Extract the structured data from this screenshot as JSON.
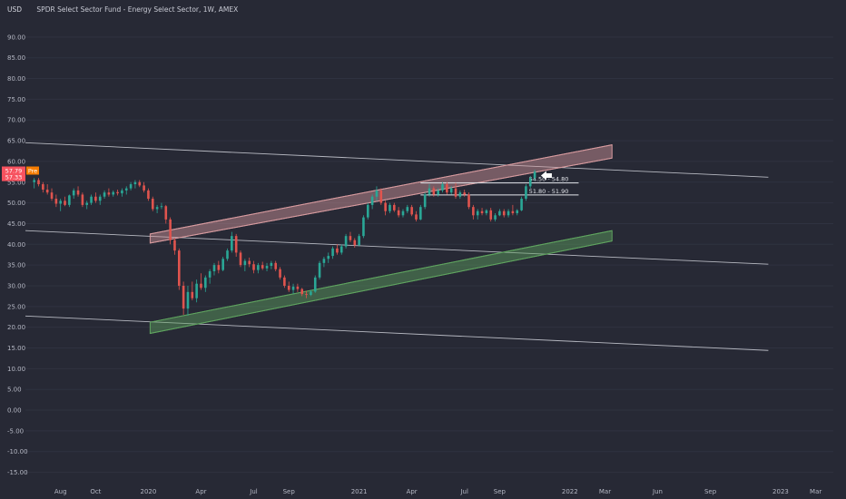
{
  "header": {
    "symbol": "USD",
    "title": "SPDR Select Sector Fund - Energy Select Sector, 1W, AMEX"
  },
  "chart_data": {
    "type": "candlestick",
    "title": "SPDR Select Sector Fund - Energy Select Sector, 1W, AMEX",
    "ylabel": "USD",
    "ylim": [
      -17.5,
      95
    ],
    "y_ticks": [
      "90.00",
      "85.00",
      "80.00",
      "75.00",
      "70.00",
      "65.00",
      "60.00",
      "55.00",
      "50.00",
      "45.00",
      "40.00",
      "35.00",
      "30.00",
      "25.00",
      "20.00",
      "15.00",
      "10.00",
      "5.00",
      "0.00",
      "-5.00",
      "-10.00",
      "-15.00"
    ],
    "x_ticks": [
      {
        "label": "Aug",
        "t": 0.5
      },
      {
        "label": "Oct",
        "t": 2.5
      },
      {
        "label": "2020",
        "t": 5.5
      },
      {
        "label": "Apr",
        "t": 8.5
      },
      {
        "label": "Jul",
        "t": 11.5
      },
      {
        "label": "Sep",
        "t": 13.5
      },
      {
        "label": "2021",
        "t": 17.5
      },
      {
        "label": "Apr",
        "t": 20.5
      },
      {
        "label": "Jul",
        "t": 23.5
      },
      {
        "label": "Sep",
        "t": 25.5
      },
      {
        "label": "2022",
        "t": 29.5
      },
      {
        "label": "Mar",
        "t": 31.5
      },
      {
        "label": "Jun",
        "t": 34.5
      },
      {
        "label": "Sep",
        "t": 37.5
      },
      {
        "label": "2023",
        "t": 41.5
      },
      {
        "label": "Mar",
        "t": 43.5
      }
    ],
    "x_range_months_since_jul_2019": [
      -1.5,
      44.5
    ],
    "last_price": "57.79",
    "prev_close": "57.33",
    "session_label": "Pre",
    "price_levels": [
      {
        "label": "54.50 - 54.80",
        "value": 54.8
      },
      {
        "label": "51.80 - 51.90",
        "value": 51.9
      }
    ],
    "channels": [
      {
        "name": "resistance-channel",
        "color": "#d69a9e",
        "t1": 5.6,
        "t2": 31.9,
        "lower": [
          40.3,
          60.8
        ],
        "upper": [
          42.5,
          64.0
        ]
      },
      {
        "name": "support-channel",
        "color": "#5fa35f",
        "t1": 5.6,
        "t2": 31.9,
        "lower": [
          18.5,
          40.8
        ],
        "upper": [
          21.2,
          43.3
        ]
      }
    ],
    "trend_lines": [
      {
        "t1": -1.5,
        "v1": 64.5,
        "t2": 40.8,
        "v2": 56.2
      },
      {
        "t1": -1.5,
        "v1": 43.3,
        "t2": 40.8,
        "v2": 35.2
      },
      {
        "t1": -1.5,
        "v1": 22.7,
        "t2": 40.8,
        "v2": 14.4
      }
    ],
    "candles": [
      {
        "t": -1.0,
        "o": 55,
        "h": 56,
        "l": 53.5,
        "c": 55.5
      },
      {
        "t": -0.75,
        "o": 55.5,
        "h": 56,
        "l": 54,
        "c": 54.5
      },
      {
        "t": -0.5,
        "o": 54.5,
        "h": 55,
        "l": 52.5,
        "c": 53.2
      },
      {
        "t": -0.25,
        "o": 53.2,
        "h": 54.5,
        "l": 52,
        "c": 52.5
      },
      {
        "t": 0.0,
        "o": 52.5,
        "h": 53.5,
        "l": 50.5,
        "c": 51
      },
      {
        "t": 0.25,
        "o": 51,
        "h": 52,
        "l": 49,
        "c": 49.8
      },
      {
        "t": 0.5,
        "o": 49.8,
        "h": 51,
        "l": 48,
        "c": 50.5
      },
      {
        "t": 0.75,
        "o": 50.5,
        "h": 51.5,
        "l": 49.2,
        "c": 49.5
      },
      {
        "t": 1.0,
        "o": 49.5,
        "h": 52,
        "l": 49,
        "c": 51.8
      },
      {
        "t": 1.25,
        "o": 51.8,
        "h": 53.5,
        "l": 51,
        "c": 53
      },
      {
        "t": 1.5,
        "o": 53,
        "h": 54,
        "l": 51.5,
        "c": 52
      },
      {
        "t": 1.75,
        "o": 52,
        "h": 52.5,
        "l": 49,
        "c": 49.5
      },
      {
        "t": 2.0,
        "o": 49.5,
        "h": 50.5,
        "l": 48.5,
        "c": 50
      },
      {
        "t": 2.25,
        "o": 50,
        "h": 52,
        "l": 49.5,
        "c": 51.5
      },
      {
        "t": 2.5,
        "o": 51.5,
        "h": 52.5,
        "l": 50,
        "c": 50.5
      },
      {
        "t": 2.75,
        "o": 50.5,
        "h": 52,
        "l": 49.5,
        "c": 51.5
      },
      {
        "t": 3.0,
        "o": 51.5,
        "h": 53,
        "l": 51,
        "c": 52.5
      },
      {
        "t": 3.25,
        "o": 52.5,
        "h": 53.5,
        "l": 51.5,
        "c": 52
      },
      {
        "t": 3.5,
        "o": 52,
        "h": 53,
        "l": 51.5,
        "c": 52.6
      },
      {
        "t": 3.75,
        "o": 52.6,
        "h": 53.2,
        "l": 51.8,
        "c": 52.3
      },
      {
        "t": 4.0,
        "o": 52.3,
        "h": 53.5,
        "l": 51.5,
        "c": 53
      },
      {
        "t": 4.25,
        "o": 53,
        "h": 54,
        "l": 52,
        "c": 53.5
      },
      {
        "t": 4.5,
        "o": 53.5,
        "h": 55,
        "l": 53,
        "c": 54.5
      },
      {
        "t": 4.75,
        "o": 54.5,
        "h": 55.5,
        "l": 53.5,
        "c": 55
      },
      {
        "t": 5.0,
        "o": 55,
        "h": 55.5,
        "l": 53.8,
        "c": 54.2
      },
      {
        "t": 5.25,
        "o": 54.2,
        "h": 55,
        "l": 52.5,
        "c": 53
      },
      {
        "t": 5.5,
        "o": 53,
        "h": 53.5,
        "l": 50.5,
        "c": 51
      },
      {
        "t": 5.75,
        "o": 51,
        "h": 51.5,
        "l": 48,
        "c": 48.5
      },
      {
        "t": 6.0,
        "o": 48.5,
        "h": 49.5,
        "l": 47.5,
        "c": 49
      },
      {
        "t": 6.25,
        "o": 49,
        "h": 50,
        "l": 48.5,
        "c": 49.2
      },
      {
        "t": 6.5,
        "o": 49.2,
        "h": 49.5,
        "l": 45,
        "c": 46
      },
      {
        "t": 6.75,
        "o": 46,
        "h": 46.5,
        "l": 40,
        "c": 41
      },
      {
        "t": 7.0,
        "o": 41,
        "h": 41.5,
        "l": 37.5,
        "c": 38.5
      },
      {
        "t": 7.25,
        "o": 38.5,
        "h": 39,
        "l": 29,
        "c": 30
      },
      {
        "t": 7.5,
        "o": 30,
        "h": 31,
        "l": 23,
        "c": 24.5
      },
      {
        "t": 7.75,
        "o": 24.5,
        "h": 30,
        "l": 22.8,
        "c": 28.5
      },
      {
        "t": 8.0,
        "o": 28.5,
        "h": 31,
        "l": 26.5,
        "c": 27
      },
      {
        "t": 8.25,
        "o": 27,
        "h": 31.5,
        "l": 26,
        "c": 30.5
      },
      {
        "t": 8.5,
        "o": 30.5,
        "h": 33,
        "l": 29,
        "c": 29.5
      },
      {
        "t": 8.75,
        "o": 29.5,
        "h": 32.5,
        "l": 28.5,
        "c": 32
      },
      {
        "t": 9.0,
        "o": 32,
        "h": 34,
        "l": 30.5,
        "c": 33.5
      },
      {
        "t": 9.25,
        "o": 33.5,
        "h": 35.5,
        "l": 32.5,
        "c": 35
      },
      {
        "t": 9.5,
        "o": 35,
        "h": 36,
        "l": 33,
        "c": 33.8
      },
      {
        "t": 9.75,
        "o": 33.8,
        "h": 37,
        "l": 33.5,
        "c": 36.5
      },
      {
        "t": 10.0,
        "o": 36.5,
        "h": 39,
        "l": 36,
        "c": 38.5
      },
      {
        "t": 10.25,
        "o": 38.5,
        "h": 43,
        "l": 38,
        "c": 42
      },
      {
        "t": 10.5,
        "o": 42,
        "h": 42.5,
        "l": 37,
        "c": 38
      },
      {
        "t": 10.75,
        "o": 38,
        "h": 38.5,
        "l": 34.5,
        "c": 35
      },
      {
        "t": 11.0,
        "o": 35,
        "h": 36.5,
        "l": 33.5,
        "c": 36
      },
      {
        "t": 11.25,
        "o": 36,
        "h": 36.8,
        "l": 34.5,
        "c": 35.2
      },
      {
        "t": 11.5,
        "o": 35.2,
        "h": 36,
        "l": 33,
        "c": 33.8
      },
      {
        "t": 11.75,
        "o": 33.8,
        "h": 35.5,
        "l": 33,
        "c": 35
      },
      {
        "t": 12.0,
        "o": 35,
        "h": 35.8,
        "l": 33.8,
        "c": 34.2
      },
      {
        "t": 12.25,
        "o": 34.2,
        "h": 35.5,
        "l": 33.5,
        "c": 34.8
      },
      {
        "t": 12.5,
        "o": 34.8,
        "h": 36,
        "l": 34,
        "c": 35.5
      },
      {
        "t": 12.75,
        "o": 35.5,
        "h": 36,
        "l": 33.5,
        "c": 34
      },
      {
        "t": 13.0,
        "o": 34,
        "h": 34.5,
        "l": 31.5,
        "c": 32
      },
      {
        "t": 13.25,
        "o": 32,
        "h": 32.5,
        "l": 29.5,
        "c": 30
      },
      {
        "t": 13.5,
        "o": 30,
        "h": 31,
        "l": 28.5,
        "c": 29
      },
      {
        "t": 13.75,
        "o": 29,
        "h": 30.5,
        "l": 28,
        "c": 29.8
      },
      {
        "t": 14.0,
        "o": 29.8,
        "h": 30.5,
        "l": 28.5,
        "c": 29.2
      },
      {
        "t": 14.25,
        "o": 29.2,
        "h": 29.5,
        "l": 27.5,
        "c": 28
      },
      {
        "t": 14.5,
        "o": 28,
        "h": 28.8,
        "l": 27,
        "c": 27.8
      },
      {
        "t": 14.75,
        "o": 27.8,
        "h": 29,
        "l": 27.5,
        "c": 28.6
      },
      {
        "t": 15.0,
        "o": 28.6,
        "h": 32.5,
        "l": 28.3,
        "c": 32
      },
      {
        "t": 15.25,
        "o": 32,
        "h": 36,
        "l": 31.5,
        "c": 35.5
      },
      {
        "t": 15.5,
        "o": 35.5,
        "h": 37,
        "l": 34.5,
        "c": 36.5
      },
      {
        "t": 15.75,
        "o": 36.5,
        "h": 38,
        "l": 35.5,
        "c": 37.2
      },
      {
        "t": 16.0,
        "o": 37.2,
        "h": 39.5,
        "l": 36.5,
        "c": 39
      },
      {
        "t": 16.25,
        "o": 39,
        "h": 40,
        "l": 37.5,
        "c": 38
      },
      {
        "t": 16.5,
        "o": 38,
        "h": 40,
        "l": 37.5,
        "c": 39.5
      },
      {
        "t": 16.75,
        "o": 39.5,
        "h": 42.5,
        "l": 39,
        "c": 42
      },
      {
        "t": 17.0,
        "o": 42,
        "h": 43,
        "l": 40.5,
        "c": 41
      },
      {
        "t": 17.25,
        "o": 41,
        "h": 41.5,
        "l": 39.2,
        "c": 39.8
      },
      {
        "t": 17.5,
        "o": 39.8,
        "h": 42.5,
        "l": 39.5,
        "c": 42
      },
      {
        "t": 17.75,
        "o": 42,
        "h": 47,
        "l": 41.5,
        "c": 46.5
      },
      {
        "t": 18.0,
        "o": 46.5,
        "h": 50,
        "l": 46,
        "c": 49.5
      },
      {
        "t": 18.25,
        "o": 49.5,
        "h": 52,
        "l": 48.5,
        "c": 51.5
      },
      {
        "t": 18.5,
        "o": 51.5,
        "h": 54,
        "l": 50.5,
        "c": 53
      },
      {
        "t": 18.75,
        "o": 53,
        "h": 53.5,
        "l": 49.5,
        "c": 50
      },
      {
        "t": 19.0,
        "o": 50,
        "h": 50.5,
        "l": 47,
        "c": 48
      },
      {
        "t": 19.25,
        "o": 48,
        "h": 50,
        "l": 47.5,
        "c": 49.5
      },
      {
        "t": 19.5,
        "o": 49.5,
        "h": 50,
        "l": 47.8,
        "c": 48.2
      },
      {
        "t": 19.75,
        "o": 48.2,
        "h": 49,
        "l": 46.5,
        "c": 47
      },
      {
        "t": 20.0,
        "o": 47,
        "h": 48.5,
        "l": 46.5,
        "c": 48
      },
      {
        "t": 20.25,
        "o": 48,
        "h": 49.5,
        "l": 47.5,
        "c": 49
      },
      {
        "t": 20.5,
        "o": 49,
        "h": 49.5,
        "l": 46.8,
        "c": 47.2
      },
      {
        "t": 20.75,
        "o": 47.2,
        "h": 48,
        "l": 45.5,
        "c": 46
      },
      {
        "t": 21.0,
        "o": 46,
        "h": 49.5,
        "l": 45.8,
        "c": 49
      },
      {
        "t": 21.25,
        "o": 49,
        "h": 52.5,
        "l": 48.5,
        "c": 52
      },
      {
        "t": 21.5,
        "o": 52,
        "h": 54.5,
        "l": 51.5,
        "c": 53.5
      },
      {
        "t": 21.75,
        "o": 53.5,
        "h": 54,
        "l": 51.5,
        "c": 52
      },
      {
        "t": 22.0,
        "o": 52,
        "h": 53.5,
        "l": 51.5,
        "c": 53
      },
      {
        "t": 22.25,
        "o": 53,
        "h": 55,
        "l": 52.5,
        "c": 54.5
      },
      {
        "t": 22.5,
        "o": 54.5,
        "h": 55,
        "l": 52,
        "c": 52.5
      },
      {
        "t": 22.75,
        "o": 52.5,
        "h": 54,
        "l": 52,
        "c": 53.5
      },
      {
        "t": 23.0,
        "o": 53.5,
        "h": 54.8,
        "l": 51,
        "c": 51.5
      },
      {
        "t": 23.25,
        "o": 51.5,
        "h": 53,
        "l": 51,
        "c": 52.5
      },
      {
        "t": 23.5,
        "o": 52.5,
        "h": 53.2,
        "l": 51.5,
        "c": 52
      },
      {
        "t": 23.75,
        "o": 52,
        "h": 52.5,
        "l": 48.5,
        "c": 49
      },
      {
        "t": 24.0,
        "o": 49,
        "h": 49.5,
        "l": 46,
        "c": 47
      },
      {
        "t": 24.25,
        "o": 47,
        "h": 48.5,
        "l": 46,
        "c": 48
      },
      {
        "t": 24.5,
        "o": 48,
        "h": 48.8,
        "l": 47,
        "c": 47.5
      },
      {
        "t": 24.75,
        "o": 47.5,
        "h": 48.5,
        "l": 47,
        "c": 48.2
      },
      {
        "t": 25.0,
        "o": 48.2,
        "h": 48.8,
        "l": 45.5,
        "c": 46
      },
      {
        "t": 25.25,
        "o": 46,
        "h": 47.5,
        "l": 45.5,
        "c": 47
      },
      {
        "t": 25.5,
        "o": 47,
        "h": 48.5,
        "l": 46.8,
        "c": 48
      },
      {
        "t": 25.75,
        "o": 48,
        "h": 48.5,
        "l": 46.5,
        "c": 47
      },
      {
        "t": 26.0,
        "o": 47,
        "h": 48.5,
        "l": 46.5,
        "c": 48
      },
      {
        "t": 26.25,
        "o": 48,
        "h": 49.5,
        "l": 47,
        "c": 47.5
      },
      {
        "t": 26.5,
        "o": 47.5,
        "h": 48.5,
        "l": 47,
        "c": 48.2
      },
      {
        "t": 26.75,
        "o": 48.2,
        "h": 51.5,
        "l": 48,
        "c": 51
      },
      {
        "t": 27.0,
        "o": 51,
        "h": 54.5,
        "l": 50.5,
        "c": 54
      },
      {
        "t": 27.25,
        "o": 54,
        "h": 56.5,
        "l": 53.5,
        "c": 56
      },
      {
        "t": 27.5,
        "o": 56,
        "h": 58,
        "l": 55.5,
        "c": 57.5
      }
    ],
    "colors": {
      "background": "#272935",
      "up": "#2aa796",
      "down": "#e0544e",
      "trend_line": "#d0d2da",
      "last_price_badge": "#f7525f",
      "pre_badge": "#f57c00"
    }
  }
}
